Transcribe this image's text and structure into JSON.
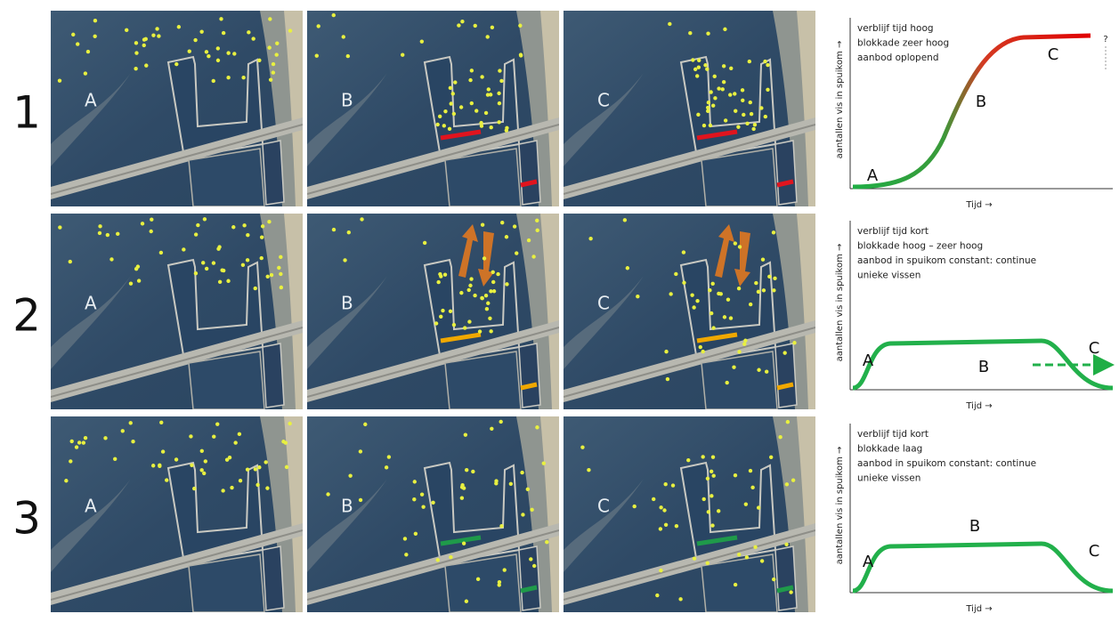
{
  "rows": [
    {
      "number": "1",
      "panels": [
        {
          "label": "A"
        },
        {
          "label": "B"
        },
        {
          "label": "C"
        }
      ],
      "graph": {
        "notes": [
          "verblijf tijd hoog",
          "blokkade zeer hoog",
          "aanbod oplopend"
        ],
        "y_label": "aantallen vis in spuikom →",
        "x_label": "Tijd →",
        "points": [
          "A",
          "B",
          "C"
        ],
        "question": "?"
      }
    },
    {
      "number": "2",
      "panels": [
        {
          "label": "A"
        },
        {
          "label": "B"
        },
        {
          "label": "C"
        }
      ],
      "graph": {
        "notes": [
          "verblijf tijd  kort",
          "blokkade hoog – zeer hoog",
          "aanbod in spuikom constant: continue",
          "unieke vissen"
        ],
        "y_label": "aantallen vis in spuikom →",
        "x_label": "Tijd →",
        "points": [
          "A",
          "B",
          "C"
        ]
      }
    },
    {
      "number": "3",
      "panels": [
        {
          "label": "A"
        },
        {
          "label": "B"
        },
        {
          "label": "C"
        }
      ],
      "graph": {
        "notes": [
          "verblijf tijd  kort",
          "blokkade laag",
          "aanbod in spuikom constant: continue",
          "unieke vissen"
        ],
        "y_label": "aantallen vis in spuikom →",
        "x_label": "Tijd →",
        "points": [
          "A",
          "B",
          "C"
        ]
      }
    }
  ]
}
